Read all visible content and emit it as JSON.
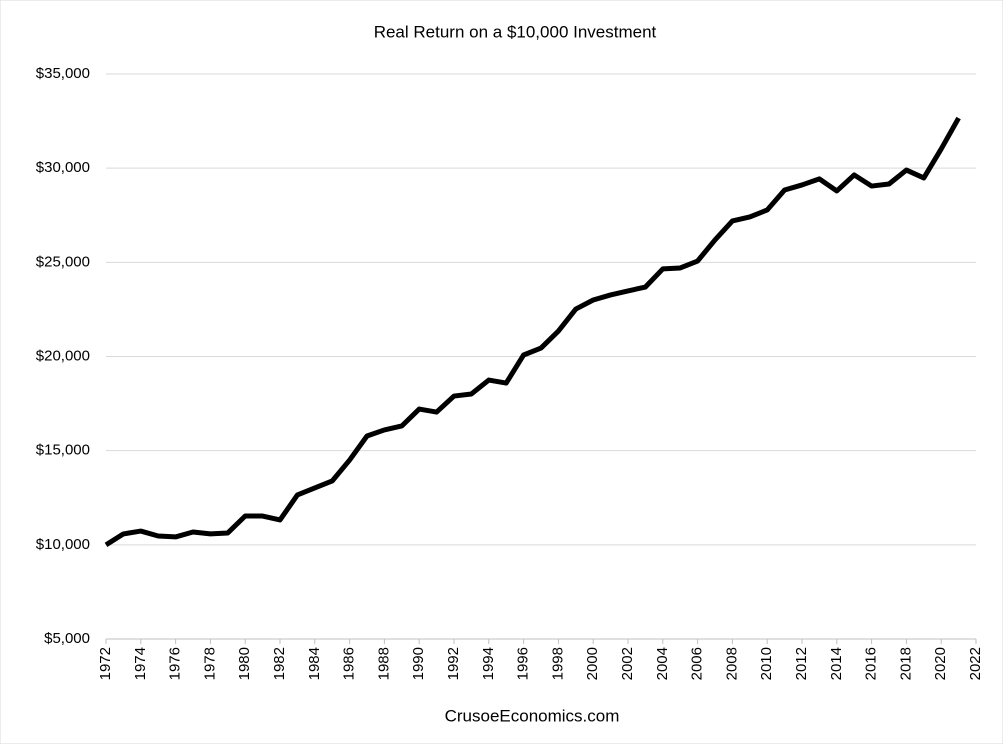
{
  "chart_data": {
    "type": "line",
    "title": "Real Return on a $10,000 Investment",
    "source": "CrusoeEconomics.com",
    "x": [
      1972,
      1973,
      1974,
      1975,
      1976,
      1977,
      1978,
      1979,
      1980,
      1981,
      1982,
      1983,
      1984,
      1985,
      1986,
      1987,
      1988,
      1989,
      1990,
      1991,
      1992,
      1993,
      1994,
      1995,
      1996,
      1997,
      1998,
      1999,
      2000,
      2001,
      2002,
      2003,
      2004,
      2005,
      2006,
      2007,
      2008,
      2009,
      2010,
      2011,
      2012,
      2013,
      2014,
      2015,
      2016,
      2017,
      2018,
      2019,
      2020,
      2021
    ],
    "values": [
      10000,
      10580,
      10730,
      10470,
      10420,
      10680,
      10580,
      10630,
      11530,
      11530,
      11320,
      12650,
      13020,
      13390,
      14500,
      15780,
      16100,
      16310,
      17210,
      17050,
      17900,
      18010,
      18750,
      18590,
      20080,
      20450,
      21350,
      22520,
      23000,
      23270,
      23480,
      23690,
      24650,
      24700,
      25070,
      26190,
      27200,
      27410,
      27780,
      28840,
      29110,
      29430,
      28790,
      29640,
      29050,
      29160,
      29900,
      29480,
      31020,
      32660
    ],
    "color": "#000000",
    "xlim": [
      1972,
      2022
    ],
    "xticks": [
      1972,
      1974,
      1976,
      1978,
      1980,
      1982,
      1984,
      1986,
      1988,
      1990,
      1992,
      1994,
      1996,
      1998,
      2000,
      2002,
      2004,
      2006,
      2008,
      2010,
      2012,
      2014,
      2016,
      2018,
      2020,
      2022
    ],
    "ylim": [
      5000,
      35000
    ],
    "yticks": [
      {
        "value": 5000,
        "label": "$5,000"
      },
      {
        "value": 10000,
        "label": "$10,000"
      },
      {
        "value": 15000,
        "label": "$15,000"
      },
      {
        "value": 20000,
        "label": "$20,000"
      },
      {
        "value": 25000,
        "label": "$25,000"
      },
      {
        "value": 30000,
        "label": "$30,000"
      },
      {
        "value": 35000,
        "label": "$35,000"
      }
    ],
    "grid": true
  }
}
